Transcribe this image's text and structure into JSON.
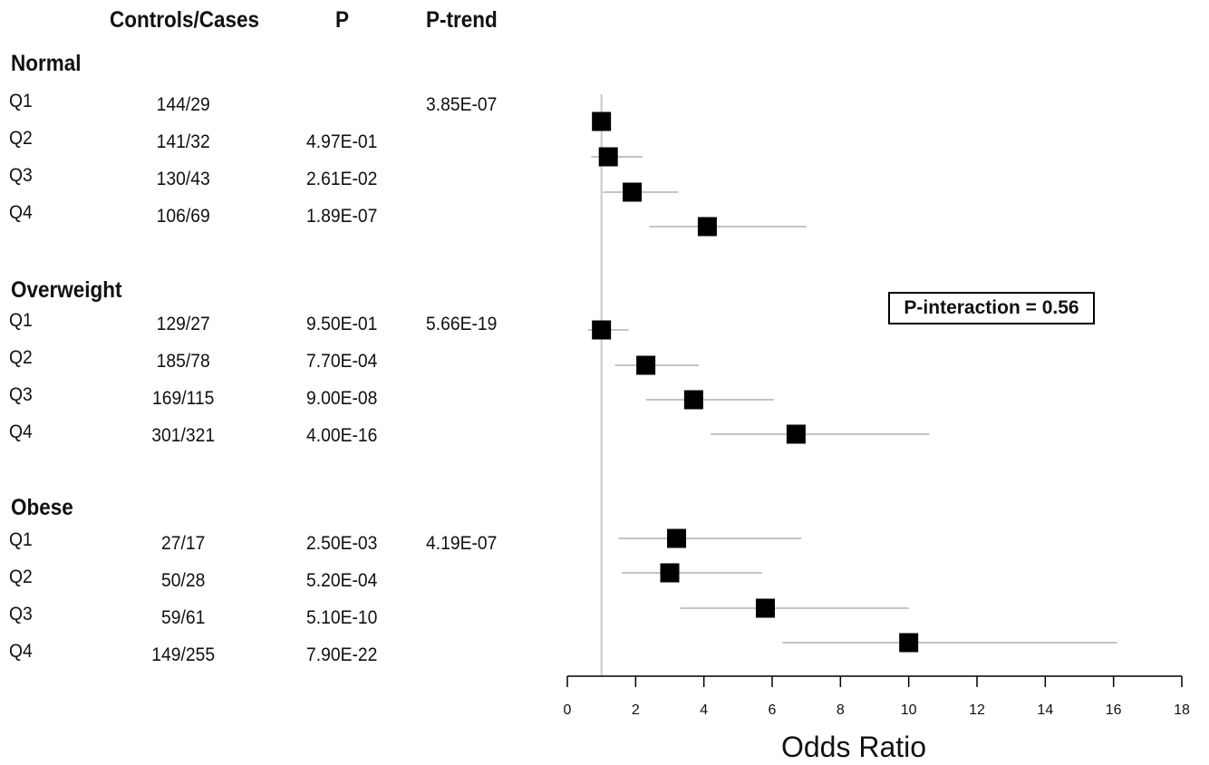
{
  "headers": {
    "controls_cases": "Controls/Cases",
    "p": "P",
    "p_trend": "P-trend"
  },
  "groups": [
    {
      "name": "Normal",
      "rows": [
        {
          "quartile": "Q1",
          "controls_cases": "144/29",
          "p": "",
          "p_trend": "3.85E-07"
        },
        {
          "quartile": "Q2",
          "controls_cases": "141/32",
          "p": "4.97E-01",
          "p_trend": ""
        },
        {
          "quartile": "Q3",
          "controls_cases": "130/43",
          "p": "2.61E-02",
          "p_trend": ""
        },
        {
          "quartile": "Q4",
          "controls_cases": "106/69",
          "p": "1.89E-07",
          "p_trend": ""
        }
      ]
    },
    {
      "name": "Overweight",
      "rows": [
        {
          "quartile": "Q1",
          "controls_cases": "129/27",
          "p": "9.50E-01",
          "p_trend": "5.66E-19"
        },
        {
          "quartile": "Q2",
          "controls_cases": "185/78",
          "p": "7.70E-04",
          "p_trend": ""
        },
        {
          "quartile": "Q3",
          "controls_cases": "169/115",
          "p": "9.00E-08",
          "p_trend": ""
        },
        {
          "quartile": "Q4",
          "controls_cases": "301/321",
          "p": "4.00E-16",
          "p_trend": ""
        }
      ]
    },
    {
      "name": "Obese",
      "rows": [
        {
          "quartile": "Q1",
          "controls_cases": "27/17",
          "p": "2.50E-03",
          "p_trend": "4.19E-07"
        },
        {
          "quartile": "Q2",
          "controls_cases": "50/28",
          "p": "5.20E-04",
          "p_trend": ""
        },
        {
          "quartile": "Q3",
          "controls_cases": "59/61",
          "p": "5.10E-10",
          "p_trend": ""
        },
        {
          "quartile": "Q4",
          "controls_cases": "149/255",
          "p": "7.90E-22",
          "p_trend": ""
        }
      ]
    }
  ],
  "annotation": "P-interaction = 0.56",
  "chart_data": {
    "type": "scatter",
    "title": "",
    "xlabel": "Odds Ratio",
    "ylabel": "",
    "xlim": [
      0,
      18
    ],
    "xticks": [
      0,
      2,
      4,
      6,
      8,
      10,
      12,
      14,
      16,
      18
    ],
    "reference_line": 1,
    "grid": false,
    "points": [
      {
        "group": "Normal",
        "label": "Q1",
        "or": 1.0,
        "ci": [
          1.0,
          1.0
        ]
      },
      {
        "group": "Normal",
        "label": "Q2",
        "or": 1.2,
        "ci": [
          0.7,
          2.2
        ]
      },
      {
        "group": "Normal",
        "label": "Q3",
        "or": 1.9,
        "ci": [
          1.05,
          3.25
        ]
      },
      {
        "group": "Normal",
        "label": "Q4",
        "or": 4.1,
        "ci": [
          2.4,
          7.0
        ]
      },
      {
        "group": "Overweight",
        "label": "Q1",
        "or": 1.0,
        "ci": [
          0.6,
          1.8
        ]
      },
      {
        "group": "Overweight",
        "label": "Q2",
        "or": 2.3,
        "ci": [
          1.4,
          3.85
        ]
      },
      {
        "group": "Overweight",
        "label": "Q3",
        "or": 3.7,
        "ci": [
          2.3,
          6.05
        ]
      },
      {
        "group": "Overweight",
        "label": "Q4",
        "or": 6.7,
        "ci": [
          4.2,
          10.6
        ]
      },
      {
        "group": "Obese",
        "label": "Q1",
        "or": 3.2,
        "ci": [
          1.5,
          6.85
        ]
      },
      {
        "group": "Obese",
        "label": "Q2",
        "or": 3.0,
        "ci": [
          1.6,
          5.7
        ]
      },
      {
        "group": "Obese",
        "label": "Q3",
        "or": 5.8,
        "ci": [
          3.3,
          10.0
        ]
      },
      {
        "group": "Obese",
        "label": "Q4",
        "or": 10.0,
        "ci": [
          6.3,
          16.1
        ]
      }
    ]
  }
}
